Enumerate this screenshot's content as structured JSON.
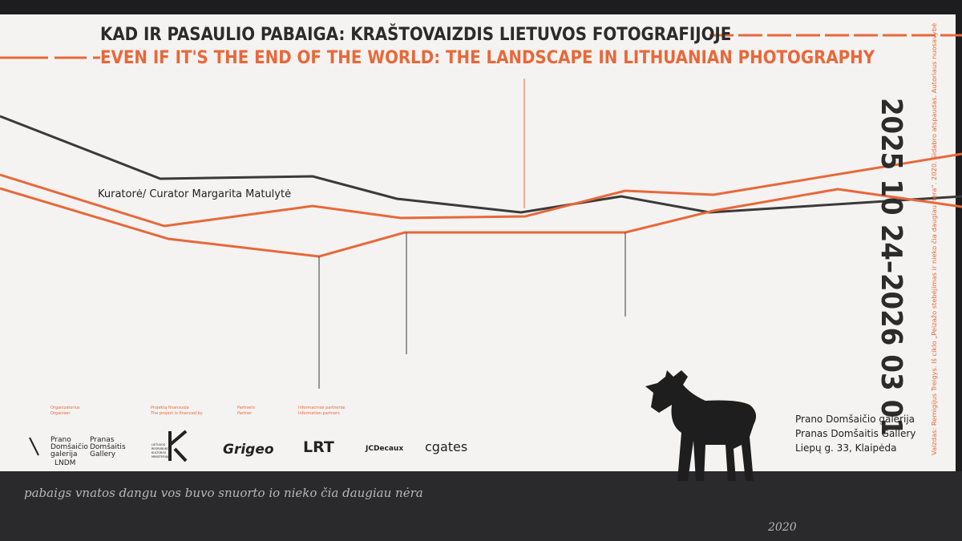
{
  "header": {
    "title_lt": "KAD IR PASAULIO PABAIGA: KRAŠTOVAIZDIS LIETUVOS FOTOGRAFIJOJE",
    "title_en": "EVEN IF IT'S THE END OF THE WORLD: THE LANDSCAPE IN LITHUANIAN PHOTOGRAPHY"
  },
  "curator": "Kuratorė/ Curator Margarita Matulytė",
  "dates": "2025 10 24–2026 03 01",
  "credit": "Vaizdas: Remigijus Treigys. Iš ciklo „Peizažo stebėjimas ir nieko čia daugiau nėra“. 2020. Sidabro atspaudas. Autoriaus nuosavybė",
  "venue": [
    "Prano Domšaičio galerija",
    "Pranas Domšaitis Gallery",
    "Liepų g. 33, Klaipėda"
  ],
  "sponsors": {
    "labels": [
      [
        "Organizatorius",
        "Organiser"
      ],
      [
        "Projektą finansuoja",
        "The project is financed by"
      ],
      [
        "Partneris",
        "Partner"
      ],
      [
        "Informaciniai partneriai",
        "Information partners"
      ]
    ],
    "logos": {
      "pdg_lt": [
        "Prano",
        "Domšaičio",
        "galerija"
      ],
      "pdg_en": [
        "Pranas",
        "Domšaitis",
        "Gallery"
      ],
      "lndm": "LNDM",
      "ministry": [
        "LIETUVOS",
        "RESPUBLIKOS",
        "KULTŪROS",
        "MINISTERIJA"
      ],
      "grigeo": "Grigeo",
      "lrt": "LRT",
      "jcdecaux": "JCDecaux",
      "cgates": "cgates"
    }
  },
  "photo": {
    "handwriting": "pabaigs vnatos dangu vos buvo snuorto io nieko čia daugiau nėra",
    "year": "2020"
  }
}
